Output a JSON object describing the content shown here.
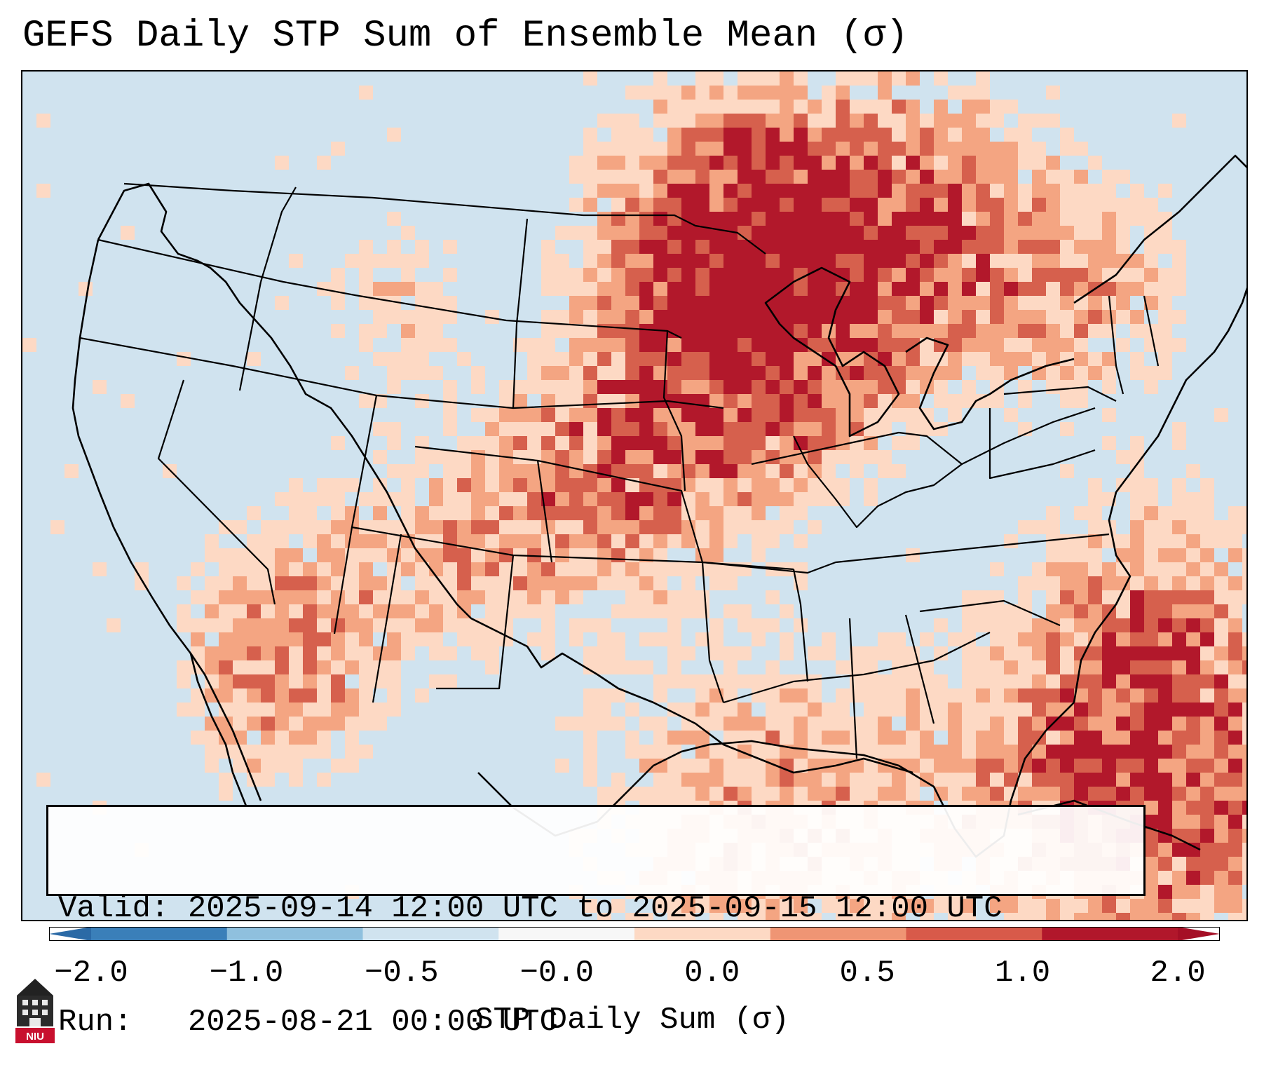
{
  "title": "GEFS Daily STP Sum of Ensemble Mean (σ)",
  "info": {
    "valid_line": "Valid: 2025-09-14 12:00 UTC to 2025-09-15 12:00 UTC",
    "run_line": "Run:   2025-08-21 00:00 UTC"
  },
  "colorbar": {
    "label": "STP Daily Sum (σ)",
    "ticks": [
      "−2.0",
      "−1.0",
      "−0.5",
      "−0.0",
      "0.0",
      "0.5",
      "1.0",
      "2.0"
    ],
    "colors": [
      "#3a7fb9",
      "#8fc0de",
      "#d0e3ef",
      "#f7f7f7",
      "#fdd9c4",
      "#ef9574",
      "#d85a4a",
      "#b1172b"
    ],
    "extend_low_color": "#2b6aa6",
    "extend_high_color": "#a50f26"
  },
  "logo": {
    "text": "NIU"
  },
  "colors": {
    "ocean": "#d0e3ef",
    "border": "#000000"
  }
}
